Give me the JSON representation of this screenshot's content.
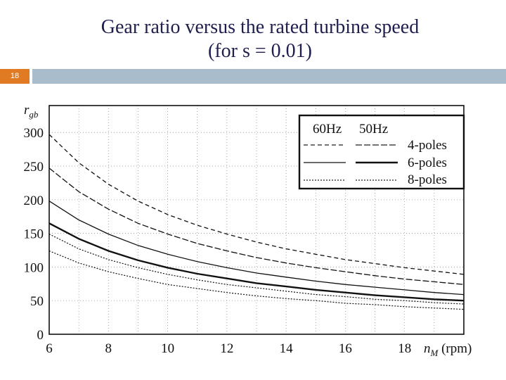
{
  "slide": {
    "title_line1": "Gear ratio versus the rated turbine speed",
    "title_line2": "(for s = 0.01)",
    "page_number": "18",
    "accent_color": "#e07b24",
    "bar_color": "#a9bccb",
    "title_color": "#1f1f4f"
  },
  "chart_data": {
    "type": "line",
    "title": "",
    "ylabel_main": "r",
    "ylabel_sub": "gb",
    "xlabel_main": "n",
    "xlabel_sub": "M",
    "xlabel_unit": " (rpm)",
    "x_ticks": [
      "6",
      "8",
      "10",
      "12",
      "14",
      "16",
      "18"
    ],
    "y_ticks": [
      "0",
      "50",
      "100",
      "150",
      "200",
      "250",
      "300"
    ],
    "xlim": [
      6,
      20
    ],
    "ylim": [
      0,
      340
    ],
    "grid": true,
    "legend_position": "top-right",
    "legend_headers": [
      "60Hz",
      "50Hz"
    ],
    "legend_rows": [
      "4-poles",
      "6-poles",
      "8-poles"
    ],
    "x": [
      6,
      7,
      8,
      9,
      10,
      11,
      12,
      13,
      14,
      15,
      16,
      17,
      18,
      19,
      20
    ],
    "series": [
      {
        "freq": "60Hz",
        "poles": "4-poles",
        "style": "dash",
        "values": [
          297,
          255,
          223,
          198,
          178,
          162,
          149,
          137,
          127,
          119,
          111,
          105,
          99,
          94,
          89
        ]
      },
      {
        "freq": "50Hz",
        "poles": "4-poles",
        "style": "dash",
        "values": [
          247,
          212,
          186,
          165,
          149,
          135,
          124,
          114,
          106,
          99,
          93,
          87,
          82,
          78,
          74
        ]
      },
      {
        "freq": "60Hz",
        "poles": "6-poles",
        "style": "solid",
        "values": [
          198,
          170,
          149,
          132,
          119,
          108,
          99,
          91,
          85,
          79,
          74,
          70,
          66,
          62,
          59
        ]
      },
      {
        "freq": "50Hz",
        "poles": "6-poles",
        "style": "solid",
        "values": [
          165,
          142,
          124,
          110,
          99,
          90,
          83,
          76,
          71,
          66,
          62,
          58,
          55,
          52,
          50
        ]
      },
      {
        "freq": "60Hz",
        "poles": "8-poles",
        "style": "dot",
        "values": [
          149,
          127,
          111,
          99,
          89,
          81,
          74,
          69,
          64,
          59,
          56,
          52,
          50,
          47,
          45
        ]
      },
      {
        "freq": "50Hz",
        "poles": "8-poles",
        "style": "dot",
        "values": [
          124,
          106,
          93,
          83,
          74,
          68,
          62,
          57,
          53,
          50,
          46,
          44,
          41,
          39,
          37
        ]
      }
    ]
  }
}
